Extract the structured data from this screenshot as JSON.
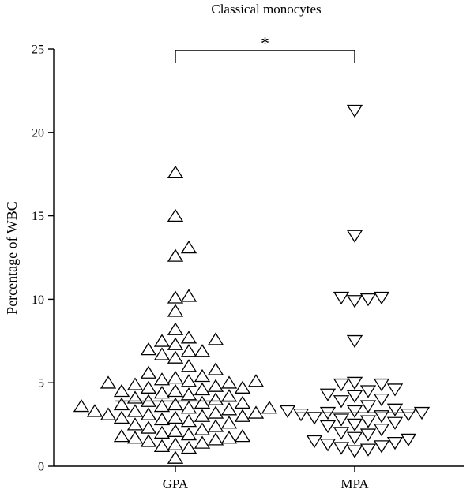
{
  "chart_data": {
    "type": "scatter",
    "title": "Classical monocytes",
    "ylabel": "Percentage of WBC",
    "xlabel": "",
    "ylim": [
      0,
      25
    ],
    "yticks": [
      0,
      5,
      10,
      15,
      20,
      25
    ],
    "categories": [
      "GPA",
      "MPA"
    ],
    "annotation": "*",
    "grid": false,
    "series": [
      {
        "name": "GPA",
        "marker": "triangle-up",
        "median": 3.9,
        "values": [
          17.6,
          15.0,
          13.1,
          12.6,
          10.2,
          10.1,
          9.3,
          8.2,
          7.7,
          7.6,
          7.5,
          7.3,
          7.0,
          6.9,
          6.9,
          6.7,
          6.5,
          6.0,
          5.8,
          5.6,
          5.4,
          5.3,
          5.2,
          5.1,
          5.1,
          5.0,
          5.0,
          4.9,
          4.8,
          4.7,
          4.7,
          4.6,
          4.5,
          4.5,
          4.4,
          4.3,
          4.2,
          4.1,
          4.0,
          3.9,
          3.8,
          3.8,
          3.7,
          3.7,
          3.6,
          3.6,
          3.5,
          3.5,
          3.4,
          3.3,
          3.3,
          3.2,
          3.2,
          3.1,
          3.1,
          3.0,
          3.0,
          2.9,
          2.9,
          2.8,
          2.7,
          2.6,
          2.5,
          2.4,
          2.3,
          2.2,
          2.1,
          2.0,
          1.9,
          1.8,
          1.8,
          1.7,
          1.7,
          1.6,
          1.5,
          1.4,
          1.3,
          1.2,
          1.1,
          0.5
        ]
      },
      {
        "name": "MPA",
        "marker": "triangle-down",
        "median": 3.2,
        "values": [
          21.3,
          13.8,
          10.1,
          10.1,
          10.0,
          9.9,
          7.5,
          5.0,
          4.9,
          4.9,
          4.6,
          4.5,
          4.3,
          4.2,
          4.0,
          3.9,
          3.6,
          3.4,
          3.3,
          3.3,
          3.2,
          3.2,
          3.1,
          3.1,
          3.0,
          2.9,
          2.8,
          2.7,
          2.6,
          2.5,
          2.4,
          2.2,
          2.0,
          1.9,
          1.7,
          1.6,
          1.5,
          1.4,
          1.3,
          1.2,
          1.1,
          1.0,
          0.9
        ]
      }
    ]
  }
}
